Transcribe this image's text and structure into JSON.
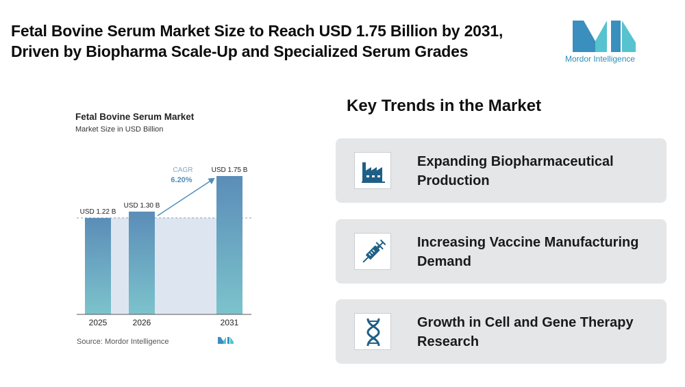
{
  "headline": {
    "line1": "Fetal Bovine Serum Market Size to Reach USD 1.75 Billion by 2031,",
    "line2": "Driven by Biopharma Scale-Up and Specialized Serum Grades"
  },
  "brand": {
    "name": "Mordor Intelligence",
    "color": "#2a8fb8"
  },
  "chart_data": {
    "type": "bar",
    "title": "Fetal Bovine Serum Market",
    "subtitle": "Market Size in USD Billion",
    "categories": [
      "2025",
      "2026",
      "2031"
    ],
    "values": [
      1.22,
      1.3,
      1.75
    ],
    "data_labels": [
      "USD 1.22 B",
      "USD 1.30 B",
      "USD 1.75 B"
    ],
    "cagr_label": "CAGR",
    "cagr_value": "6.20%",
    "source": "Source: Mordor Intelligence",
    "bar_color_top": "#5b8db8",
    "bar_color_bottom": "#7cc3cc",
    "ylim": [
      0,
      1.75
    ],
    "grid": false
  },
  "trends": {
    "title": "Key Trends in the Market",
    "items": [
      {
        "icon": "factory-icon",
        "label": "Expanding Biopharmaceutical Production"
      },
      {
        "icon": "syringe-icon",
        "label": "Increasing Vaccine Manufacturing Demand"
      },
      {
        "icon": "dna-icon",
        "label": "Growth in Cell and Gene Therapy Research"
      }
    ]
  }
}
